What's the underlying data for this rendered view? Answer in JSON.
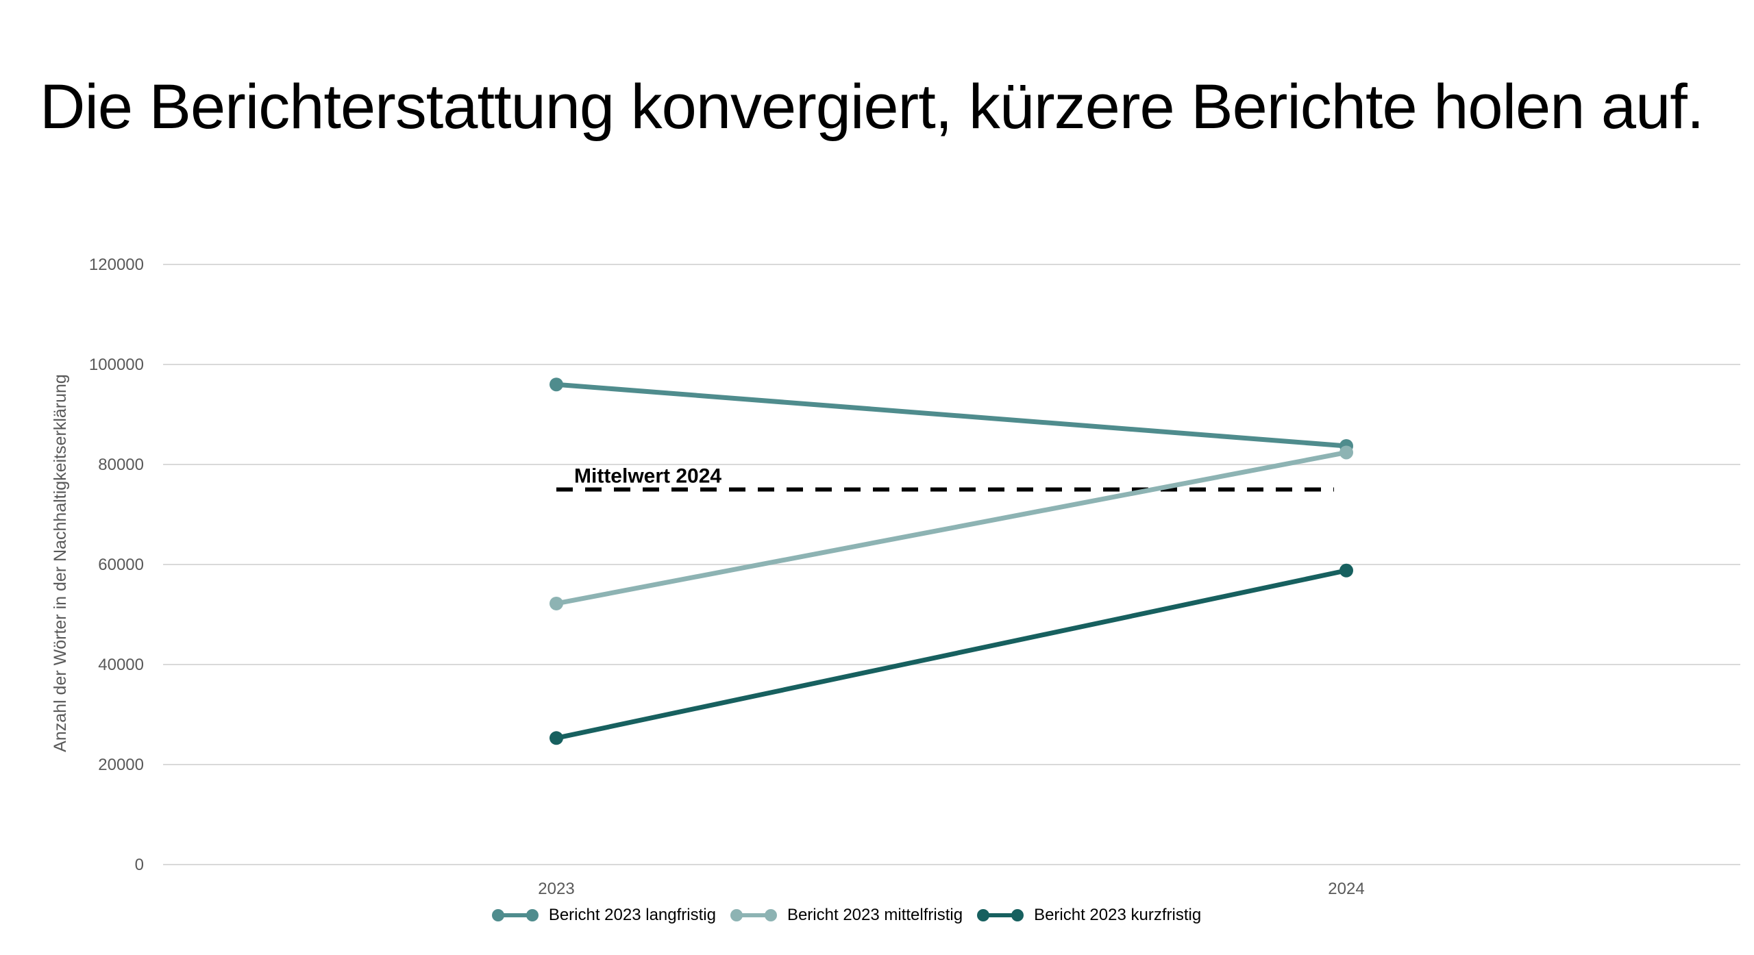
{
  "title": "Die Berichterstattung konvergiert, kürzere Berichte holen auf.",
  "chart_data": {
    "type": "line",
    "title": "",
    "xlabel": "",
    "ylabel": "Anzahl der Wörter in der Nachhaltigkeitserklärung",
    "categories": [
      "2023",
      "2024"
    ],
    "ylim": [
      0,
      120000
    ],
    "yticks": [
      0,
      20000,
      40000,
      60000,
      80000,
      100000,
      120000
    ],
    "ytick_labels": [
      "0",
      "20000",
      "40000",
      "60000",
      "80000",
      "100000",
      "120000"
    ],
    "grid": true,
    "legend_position": "bottom",
    "series": [
      {
        "name": "Bericht 2023 langfristig",
        "values": [
          96000,
          83700
        ],
        "color": "#4f8c8d"
      },
      {
        "name": "Bericht 2023 mittelfristig",
        "values": [
          52200,
          82400
        ],
        "color": "#8db3b3"
      },
      {
        "name": "Bericht 2023 kurzfristig",
        "values": [
          25300,
          58800
        ],
        "color": "#17605f"
      }
    ],
    "reference_line": {
      "label": "Mittelwert 2024",
      "value": 75000,
      "style": "dashed",
      "color": "#000000"
    },
    "colors": {
      "grid": "#d9d9d9",
      "tick_text": "#595959",
      "axis_title": "#595959"
    }
  }
}
